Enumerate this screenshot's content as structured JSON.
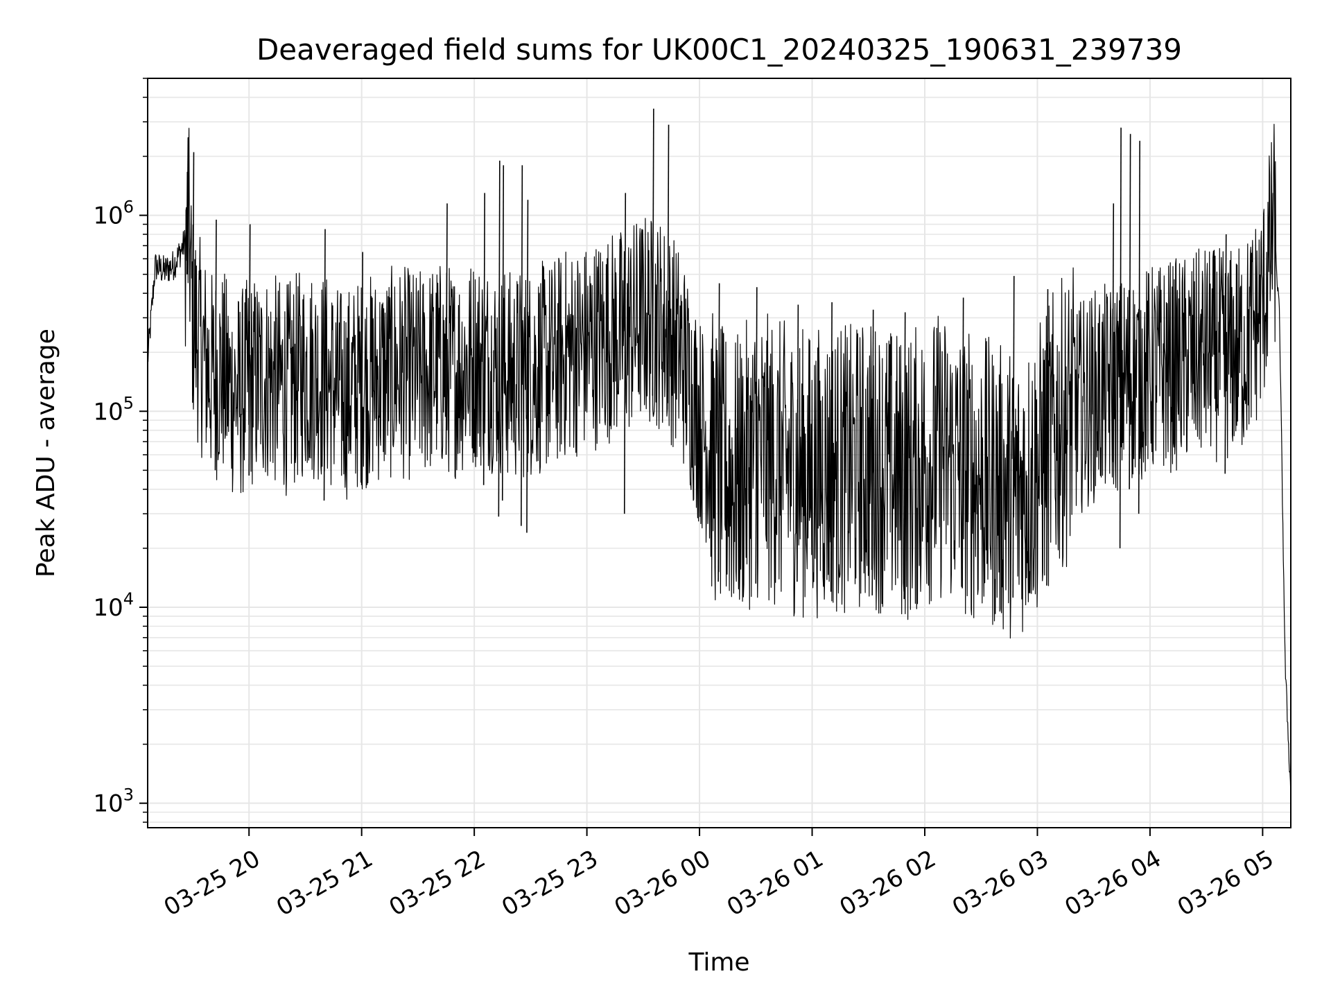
{
  "chart_data": {
    "type": "line",
    "title": "Deaveraged field sums for UK00C1_20240325_190631_239739",
    "xlabel": "Time",
    "ylabel": "Peak ADU - average",
    "y_scale": "log",
    "ylim": [
      750,
      5000000
    ],
    "xlim": [
      "03-25 19:06",
      "03-26 05:15"
    ],
    "grid": true,
    "grid_color": "#e6e6e6",
    "line_color": "#000000",
    "x_ticks": [
      {
        "label": "03-25 20",
        "time": "03-25 20:00"
      },
      {
        "label": "03-25 21",
        "time": "03-25 21:00"
      },
      {
        "label": "03-25 22",
        "time": "03-25 22:00"
      },
      {
        "label": "03-25 23",
        "time": "03-25 23:00"
      },
      {
        "label": "03-26 00",
        "time": "03-26 00:00"
      },
      {
        "label": "03-26 01",
        "time": "03-26 01:00"
      },
      {
        "label": "03-26 02",
        "time": "03-26 02:00"
      },
      {
        "label": "03-26 03",
        "time": "03-26 03:00"
      },
      {
        "label": "03-26 04",
        "time": "03-26 04:00"
      },
      {
        "label": "03-26 05",
        "time": "03-26 05:00"
      }
    ],
    "y_ticks": [
      {
        "base": "10",
        "exp": "3",
        "value": 1000
      },
      {
        "base": "10",
        "exp": "4",
        "value": 10000
      },
      {
        "base": "10",
        "exp": "5",
        "value": 100000
      },
      {
        "base": "10",
        "exp": "6",
        "value": 1000000
      }
    ],
    "series": [
      {
        "x": [
          "03-25 19:06",
          "03-25 19:10",
          "03-25 19:15",
          "03-25 19:20",
          "03-25 19:25",
          "03-25 19:28",
          "03-25 19:30",
          "03-25 19:35",
          "03-25 19:40",
          "03-25 19:45",
          "03-25 19:50",
          "03-25 19:55",
          "03-25 20:00",
          "03-25 20:10",
          "03-25 20:20",
          "03-25 20:30",
          "03-25 20:40",
          "03-25 20:50",
          "03-25 21:00",
          "03-25 21:10",
          "03-25 21:20",
          "03-25 21:30",
          "03-25 21:40",
          "03-25 21:50",
          "03-25 22:00",
          "03-25 22:10",
          "03-25 22:20",
          "03-25 22:30",
          "03-25 22:40",
          "03-25 22:50",
          "03-25 23:00",
          "03-25 23:10",
          "03-25 23:20",
          "03-25 23:30",
          "03-25 23:40",
          "03-25 23:50",
          "03-26 00:00",
          "03-26 00:10",
          "03-26 00:20",
          "03-26 00:30",
          "03-26 00:40",
          "03-26 00:50",
          "03-26 01:00",
          "03-26 01:10",
          "03-26 01:20",
          "03-26 01:30",
          "03-26 01:40",
          "03-26 01:50",
          "03-26 02:00",
          "03-26 02:10",
          "03-26 02:20",
          "03-26 02:30",
          "03-26 02:40",
          "03-26 02:50",
          "03-26 03:00",
          "03-26 03:10",
          "03-26 03:20",
          "03-26 03:30",
          "03-26 03:40",
          "03-26 03:50",
          "03-26 04:00",
          "03-26 04:10",
          "03-26 04:20",
          "03-26 04:30",
          "03-26 04:40",
          "03-26 04:50",
          "03-26 05:00",
          "03-26 05:03",
          "03-26 05:06",
          "03-26 05:09",
          "03-26 05:12",
          "03-26 05:15"
        ],
        "y": [
          180000,
          550000,
          520000,
          560000,
          700000,
          800000,
          300000,
          200000,
          150000,
          160000,
          130000,
          120000,
          140000,
          150000,
          130000,
          160000,
          150000,
          120000,
          140000,
          150000,
          160000,
          150000,
          170000,
          160000,
          180000,
          170000,
          150000,
          160000,
          170000,
          200000,
          210000,
          240000,
          250000,
          300000,
          280000,
          200000,
          90000,
          50000,
          45000,
          60000,
          55000,
          50000,
          48000,
          52000,
          50000,
          55000,
          50000,
          45000,
          55000,
          60000,
          50000,
          45000,
          40000,
          38000,
          50000,
          80000,
          100000,
          120000,
          130000,
          150000,
          160000,
          170000,
          180000,
          200000,
          190000,
          210000,
          350000,
          550000,
          900000,
          300000,
          5000,
          1100
        ],
        "spikes": [
          {
            "x": "03-25 19:27",
            "high": 2500000,
            "low": 500000
          },
          {
            "x": "03-25 19:30",
            "high": 2100000,
            "low": 120000
          },
          {
            "x": "03-25 19:42",
            "high": 950000,
            "low": 50000
          },
          {
            "x": "03-25 20:00",
            "high": 900000,
            "low": 47000
          },
          {
            "x": "03-25 20:40",
            "high": 850000,
            "low": 35000
          },
          {
            "x": "03-25 21:00",
            "high": 650000,
            "low": 42000
          },
          {
            "x": "03-25 21:45",
            "high": 1150000,
            "low": 60000
          },
          {
            "x": "03-25 22:05",
            "high": 1300000,
            "low": 42000
          },
          {
            "x": "03-25 22:13",
            "high": 1900000,
            "low": 29000
          },
          {
            "x": "03-25 22:15",
            "high": 1800000,
            "low": 35000
          },
          {
            "x": "03-25 22:25",
            "high": 1800000,
            "low": 26000
          },
          {
            "x": "03-25 22:28",
            "high": 1200000,
            "low": 24000
          },
          {
            "x": "03-25 23:20",
            "high": 1300000,
            "low": 30000
          },
          {
            "x": "03-25 23:35",
            "high": 3500000,
            "low": 120000
          },
          {
            "x": "03-25 23:43",
            "high": 2900000,
            "low": 110000
          },
          {
            "x": "03-26 00:10",
            "high": 450000,
            "low": 13500
          },
          {
            "x": "03-26 00:30",
            "high": 430000,
            "low": 13200
          },
          {
            "x": "03-26 00:52",
            "high": 350000,
            "low": 13500
          },
          {
            "x": "03-26 01:10",
            "high": 360000,
            "low": 12000
          },
          {
            "x": "03-26 01:32",
            "high": 330000,
            "low": 11500
          },
          {
            "x": "03-26 01:49",
            "high": 320000,
            "low": 11000
          },
          {
            "x": "03-26 02:20",
            "high": 380000,
            "low": 12500
          },
          {
            "x": "03-26 02:47",
            "high": 490000,
            "low": 11200
          },
          {
            "x": "03-26 03:05",
            "high": 420000,
            "low": 12900
          },
          {
            "x": "03-26 03:40",
            "high": 1150000,
            "low": 55000
          },
          {
            "x": "03-26 03:44",
            "high": 2800000,
            "low": 20000
          },
          {
            "x": "03-26 03:49",
            "high": 2600000,
            "low": 40000
          },
          {
            "x": "03-26 03:54",
            "high": 2400000,
            "low": 30000
          },
          {
            "x": "03-26 04:40",
            "high": 800000,
            "low": 48000
          },
          {
            "x": "03-26 05:05",
            "high": 1300000,
            "low": 500000
          }
        ]
      }
    ]
  }
}
